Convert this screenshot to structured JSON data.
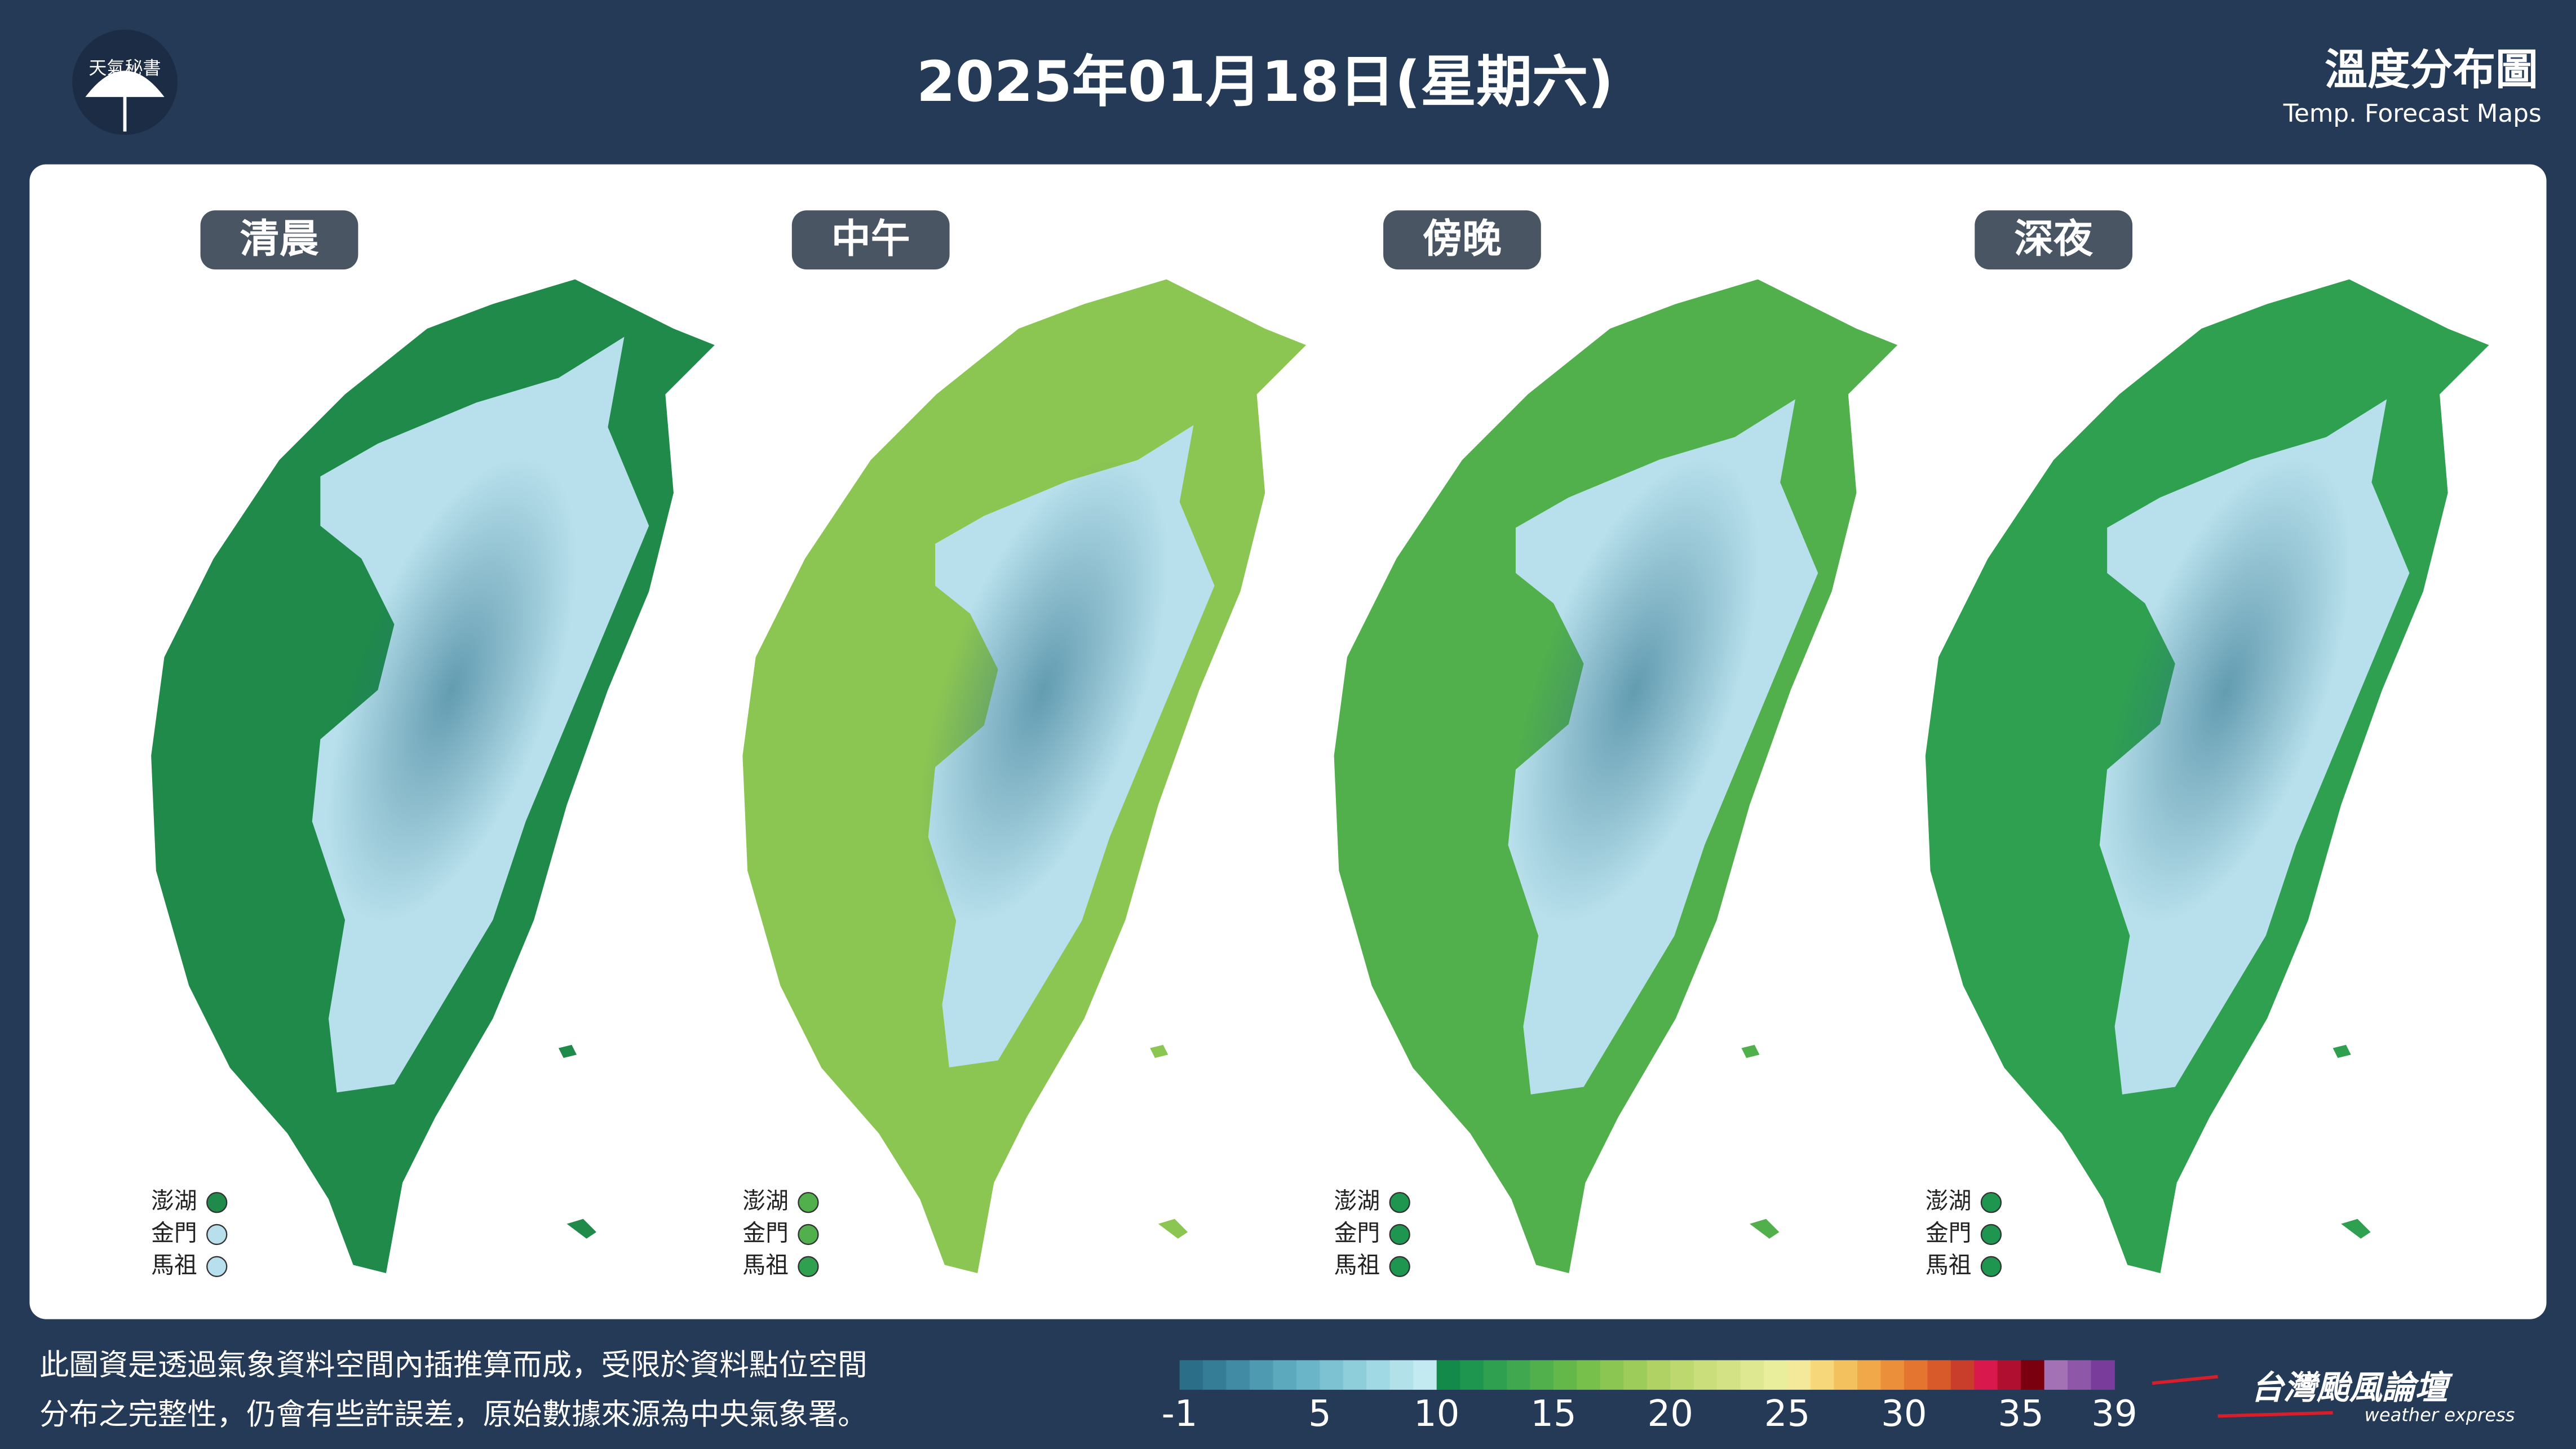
{
  "header": {
    "logo_text": "天氣秘書",
    "title": "2025年01月18日(星期六)",
    "right_title": "溫度分布圖",
    "right_subtitle": "Temp. Forecast Maps"
  },
  "panels": [
    {
      "label": "清晨",
      "land_color": "#1f8a4a",
      "cold_color": "#b8e0ec",
      "islands": [
        {
          "name": "澎湖",
          "color": "#1f8a4a"
        },
        {
          "name": "金門",
          "color": "#b8e0ec"
        },
        {
          "name": "馬祖",
          "color": "#b8e0ec"
        }
      ]
    },
    {
      "label": "中午",
      "land_color": "#8cc652",
      "cold_color": "#b8e0ec",
      "islands": [
        {
          "name": "澎湖",
          "color": "#52b04c"
        },
        {
          "name": "金門",
          "color": "#52b04c"
        },
        {
          "name": "馬祖",
          "color": "#2fa050"
        }
      ]
    },
    {
      "label": "傍晚",
      "land_color": "#52b04c",
      "cold_color": "#b8e0ec",
      "islands": [
        {
          "name": "澎湖",
          "color": "#1f9650"
        },
        {
          "name": "金門",
          "color": "#1f9650"
        },
        {
          "name": "馬祖",
          "color": "#1f9650"
        }
      ]
    },
    {
      "label": "深夜",
      "land_color": "#2fa050",
      "cold_color": "#b8e0ec",
      "islands": [
        {
          "name": "澎湖",
          "color": "#1f9650"
        },
        {
          "name": "金門",
          "color": "#1f9650"
        },
        {
          "name": "馬祖",
          "color": "#1f9650"
        }
      ]
    }
  ],
  "footer": {
    "note_lines": [
      "此圖資是透過氣象資料空間內插推算而成，受限於資料點位空間",
      "分布之完整性，仍會有些許誤差，原始數據來源為中央氣象署。"
    ],
    "brand": "台灣颱風論壇",
    "brand_sub": "weather express"
  },
  "colorbar": {
    "min": -1,
    "max": 39,
    "ticks": [
      -1,
      5,
      10,
      15,
      20,
      25,
      30,
      35,
      39
    ],
    "colors": [
      "#2a6e88",
      "#357d96",
      "#418ca4",
      "#4e9ab1",
      "#5ca8bd",
      "#6bb5c8",
      "#7cc2d2",
      "#8ecedb",
      "#a0d8e3",
      "#b2e1ea",
      "#c4eaf1",
      "#138a4a",
      "#1f9650",
      "#2fa050",
      "#40a84e",
      "#52b04c",
      "#64b84a",
      "#78c04c",
      "#8cc652",
      "#9ecc5a",
      "#b0d264",
      "#bed870",
      "#cade7c",
      "#d4e286",
      "#dee890",
      "#e8ee9c",
      "#f4e89a",
      "#f6d77a",
      "#f3c25e",
      "#f0a848",
      "#eb8f3a",
      "#e37530",
      "#d85a2a",
      "#c93e2a",
      "#d9184e",
      "#b00f30",
      "#7a0010",
      "#a272b4",
      "#8e57a8",
      "#7a3c9a"
    ]
  }
}
